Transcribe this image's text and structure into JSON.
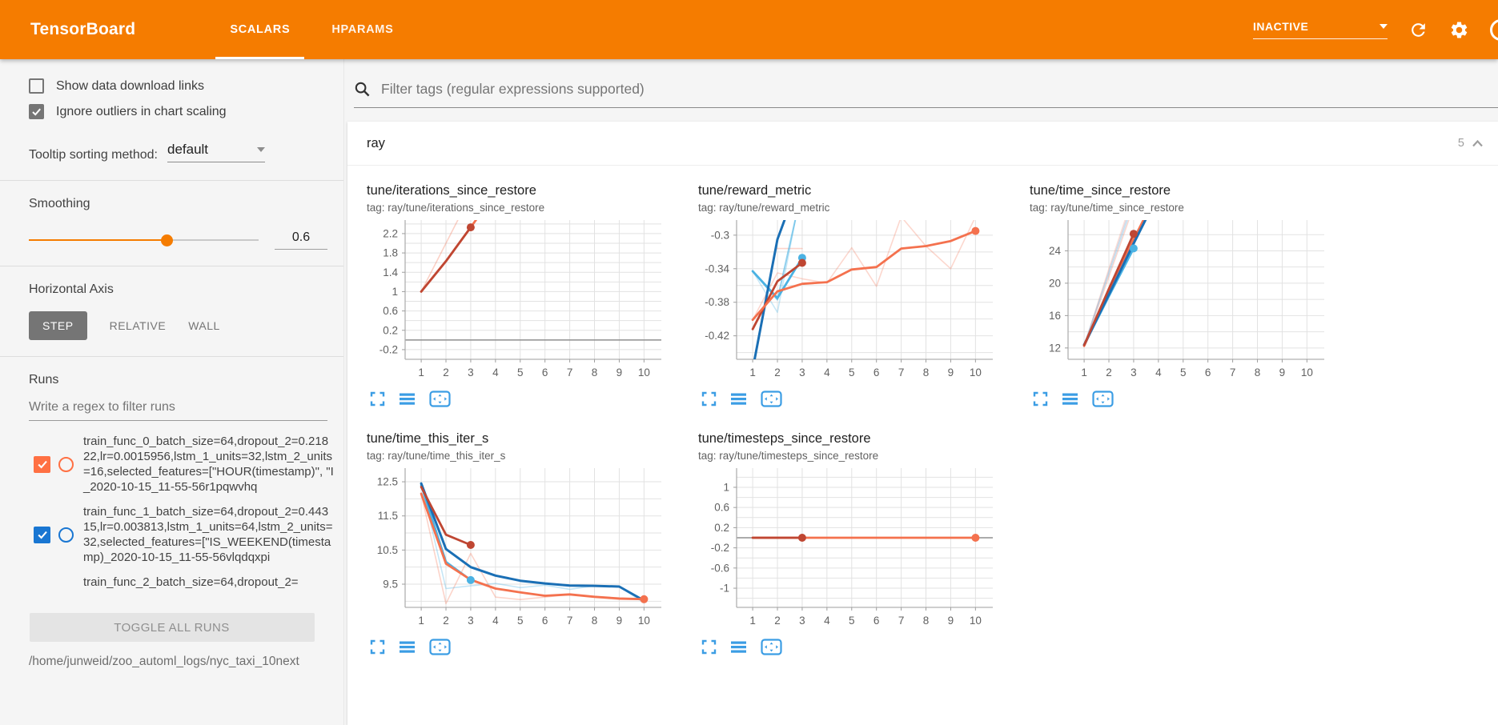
{
  "theme": {
    "accent_orange": "#f57c00",
    "chart_action_blue": "#3b9de4",
    "run_color_orange": "#ff7043",
    "run_color_blue": "#1976d2"
  },
  "header": {
    "title": "TensorBoard",
    "tabs": [
      {
        "label": "SCALARS",
        "active": true
      },
      {
        "label": "HPARAMS",
        "active": false
      }
    ],
    "status": "INACTIVE",
    "icons": [
      "caret-down",
      "refresh",
      "gear",
      "help-circle"
    ]
  },
  "sidebar": {
    "checkboxes": [
      {
        "label": "Show data download links",
        "checked": false
      },
      {
        "label": "Ignore outliers in chart scaling",
        "checked": true
      }
    ],
    "tooltip_sorting": {
      "label": "Tooltip sorting method:",
      "value": "default"
    },
    "smoothing": {
      "label": "Smoothing",
      "value": "0.6"
    },
    "horizontal_axis": {
      "label": "Horizontal Axis",
      "options": [
        "STEP",
        "RELATIVE",
        "WALL"
      ],
      "selected": "STEP"
    },
    "runs": {
      "label": "Runs",
      "filter_placeholder": "Write a regex to filter runs",
      "items": [
        {
          "label": "train_func_0_batch_size=64,dropout_2=0.21822,lr=0.0015956,lstm_1_units=32,lstm_2_units=16,selected_features=[\"HOUR(timestamp)\", \"I_2020-10-15_11-55-56r1pqwvhq",
          "checked": true,
          "color": "#ff7043"
        },
        {
          "label": "train_func_1_batch_size=64,dropout_2=0.44315,lr=0.003813,lstm_1_units=64,lstm_2_units=32,selected_features=[\"IS_WEEKEND(timestamp)_2020-10-15_11-55-56vlqdqxpi",
          "checked": true,
          "color": "#1976d2"
        },
        {
          "label": "train_func_2_batch_size=64,dropout_2=",
          "checked": null,
          "color": null
        }
      ],
      "toggle_all_label": "TOGGLE ALL RUNS"
    },
    "log_path": "/home/junweid/zoo_automl_logs/nyc_taxi_10next"
  },
  "main": {
    "filter_placeholder": "Filter tags (regular expressions supported)",
    "group": {
      "name": "ray",
      "count": "5"
    }
  },
  "chart_data": [
    {
      "type": "line",
      "title": "tune/iterations_since_restore",
      "tag": "tag: ray/tune/iterations_since_restore",
      "xticks": [
        1,
        2,
        3,
        4,
        5,
        6,
        7,
        8,
        9,
        10
      ],
      "xlim": [
        0.35,
        10.7
      ],
      "ylim": [
        -0.4,
        2.48
      ],
      "yticks": [
        [
          2.2,
          "2.2"
        ],
        [
          1.8,
          "1.8"
        ],
        [
          1.4,
          "1.4"
        ],
        [
          1,
          "1"
        ],
        [
          0.6,
          "0.6"
        ],
        [
          0.2,
          "0.2"
        ],
        [
          -0.2,
          "-0.2"
        ]
      ],
      "minor_step": 0.2,
      "zero_line": true,
      "series": [
        {
          "name": "raw",
          "color": "#f4714e",
          "width": 1.6,
          "opacity": 0.32,
          "points": [
            [
              1,
              1
            ],
            [
              2,
              2
            ],
            [
              3,
              3
            ]
          ]
        },
        {
          "name": "smoothed-orange",
          "color": "#f4714e",
          "width": 2.8,
          "opacity": 1,
          "points": [
            [
              1,
              1
            ],
            [
              2,
              1.63
            ],
            [
              3,
              2.33
            ],
            [
              4,
              3.05
            ]
          ]
        },
        {
          "name": "smoothed-red",
          "color": "#bf4632",
          "width": 2.8,
          "opacity": 1,
          "points": [
            [
              1,
              1
            ],
            [
              2,
              1.63
            ],
            [
              3,
              2.33
            ]
          ],
          "end_dot": true
        }
      ]
    },
    {
      "type": "line",
      "title": "tune/reward_metric",
      "tag": "tag: ray/tune/reward_metric",
      "xticks": [
        1,
        2,
        3,
        4,
        5,
        6,
        7,
        8,
        9,
        10
      ],
      "xlim": [
        0.35,
        10.7
      ],
      "ylim": [
        -0.448,
        -0.282
      ],
      "yticks": [
        [
          -0.3,
          "-0.3"
        ],
        [
          -0.34,
          "-0.34"
        ],
        [
          -0.38,
          "-0.38"
        ],
        [
          -0.42,
          "-0.42"
        ]
      ],
      "minor_step": 0.02,
      "zero_line": false,
      "series": [
        {
          "name": "raw-pink-flat",
          "color": "#f4714e",
          "width": 1.6,
          "opacity": 0.3,
          "points": [
            [
              2,
              -0.316
            ],
            [
              3,
              -0.316
            ]
          ]
        },
        {
          "name": "raw-pink",
          "color": "#f4714e",
          "width": 1.6,
          "opacity": 0.28,
          "points": [
            [
              1,
              -0.401
            ],
            [
              2,
              -0.345
            ],
            [
              3,
              -0.352
            ],
            [
              4,
              -0.357
            ],
            [
              5,
              -0.315
            ],
            [
              6,
              -0.361
            ],
            [
              7,
              -0.278
            ],
            [
              8,
              -0.313
            ],
            [
              9,
              -0.34
            ],
            [
              10,
              -0.278
            ]
          ]
        },
        {
          "name": "raw-cyan",
          "color": "#4ab2e3",
          "width": 1.6,
          "opacity": 0.3,
          "points": [
            [
              1,
              -0.343
            ],
            [
              2,
              -0.392
            ],
            [
              3,
              -0.24
            ]
          ]
        },
        {
          "name": "raw-cyan-2",
          "color": "#4ab2e3",
          "width": 2,
          "opacity": 0.6,
          "points": [
            [
              1,
              -0.343
            ],
            [
              2,
              -0.377
            ],
            [
              3,
              -0.245
            ]
          ]
        },
        {
          "name": "smoothed-cyan",
          "color": "#4ab2e3",
          "width": 2.8,
          "opacity": 1,
          "points": [
            [
              1,
              -0.343
            ],
            [
              2,
              -0.375
            ],
            [
              3,
              -0.327
            ]
          ],
          "end_dot": true
        },
        {
          "name": "smoothed-blue",
          "color": "#1a6fb5",
          "width": 3,
          "opacity": 1,
          "points": [
            [
              1,
              -0.46
            ],
            [
              2,
              -0.305
            ],
            [
              3,
              -0.225
            ]
          ]
        },
        {
          "name": "smoothed-red",
          "color": "#bf4632",
          "width": 2.8,
          "opacity": 1,
          "points": [
            [
              1,
              -0.412
            ],
            [
              2,
              -0.355
            ],
            [
              3,
              -0.333
            ]
          ],
          "end_dot": true
        },
        {
          "name": "smoothed-orange",
          "color": "#f4714e",
          "width": 2.8,
          "opacity": 1,
          "points": [
            [
              1,
              -0.401
            ],
            [
              2,
              -0.367
            ],
            [
              3,
              -0.358
            ],
            [
              4,
              -0.356
            ],
            [
              5,
              -0.341
            ],
            [
              6,
              -0.338
            ],
            [
              7,
              -0.316
            ],
            [
              8,
              -0.313
            ],
            [
              9,
              -0.307
            ],
            [
              10,
              -0.295
            ]
          ],
          "end_dot": true
        }
      ]
    },
    {
      "type": "line",
      "title": "tune/time_since_restore",
      "tag": "tag: ray/tune/time_since_restore",
      "xticks": [
        1,
        2,
        3,
        4,
        5,
        6,
        7,
        8,
        9,
        10
      ],
      "xlim": [
        0.35,
        10.7
      ],
      "ylim": [
        10.6,
        27.8
      ],
      "yticks": [
        [
          24,
          "24"
        ],
        [
          20,
          "20"
        ],
        [
          16,
          "16"
        ],
        [
          12,
          "12"
        ]
      ],
      "minor_step": 2,
      "zero_line": false,
      "series": [
        {
          "name": "raw-pink",
          "color": "#f4714e",
          "width": 1.6,
          "opacity": 0.28,
          "points": [
            [
              1,
              12.2
            ],
            [
              2,
              20.8
            ],
            [
              3,
              29.5
            ]
          ]
        },
        {
          "name": "raw-pink-2",
          "color": "#f4714e",
          "width": 1.6,
          "opacity": 0.22,
          "points": [
            [
              1,
              12.2
            ],
            [
              2,
              21.8
            ],
            [
              3,
              31
            ]
          ]
        },
        {
          "name": "raw-blue",
          "color": "#4ab2e3",
          "width": 1.6,
          "opacity": 0.3,
          "points": [
            [
              1,
              12.35
            ],
            [
              2,
              21.2
            ],
            [
              3,
              30
            ]
          ]
        },
        {
          "name": "raw-gray",
          "color": "#aab4cf",
          "width": 1.6,
          "opacity": 0.45,
          "points": [
            [
              1,
              12.3
            ],
            [
              2,
              21.5
            ],
            [
              3,
              30.5
            ]
          ]
        },
        {
          "name": "smoothed-cyan",
          "color": "#4ab2e3",
          "width": 2.8,
          "opacity": 1,
          "points": [
            [
              1,
              12.35
            ],
            [
              2,
              18.4
            ],
            [
              3,
              24.3
            ]
          ],
          "end_dot": true
        },
        {
          "name": "smoothed-orange",
          "color": "#f4714e",
          "width": 2.8,
          "opacity": 1,
          "points": [
            [
              1,
              12.25
            ],
            [
              2,
              18.9
            ],
            [
              3,
              25.4
            ],
            [
              4,
              31.5
            ]
          ]
        },
        {
          "name": "smoothed-blue",
          "color": "#1a6fb5",
          "width": 3,
          "opacity": 1,
          "points": [
            [
              1,
              12.4
            ],
            [
              2,
              18.6
            ],
            [
              3,
              24.9
            ],
            [
              4,
              31
            ]
          ]
        },
        {
          "name": "smoothed-red",
          "color": "#bf4632",
          "width": 2.8,
          "opacity": 1,
          "points": [
            [
              1,
              12.35
            ],
            [
              2,
              19.3
            ],
            [
              3,
              26.1
            ]
          ],
          "end_dot": true
        }
      ]
    },
    {
      "type": "line",
      "title": "tune/time_this_iter_s",
      "tag": "tag: ray/tune/time_this_iter_s",
      "xticks": [
        1,
        2,
        3,
        4,
        5,
        6,
        7,
        8,
        9,
        10
      ],
      "xlim": [
        0.35,
        10.7
      ],
      "ylim": [
        8.82,
        12.9
      ],
      "yticks": [
        [
          12.5,
          "12.5"
        ],
        [
          11.5,
          "11.5"
        ],
        [
          10.5,
          "10.5"
        ],
        [
          9.5,
          "9.5"
        ]
      ],
      "minor_step": 0.5,
      "zero_line": false,
      "series": [
        {
          "name": "raw-pink",
          "color": "#f4714e",
          "width": 1.6,
          "opacity": 0.3,
          "points": [
            [
              1,
              12.15
            ],
            [
              2,
              8.93
            ],
            [
              3,
              10.4
            ],
            [
              4,
              9.12
            ],
            [
              5,
              9.05
            ],
            [
              6,
              9.12
            ],
            [
              7,
              9.2
            ],
            [
              8,
              9.12
            ],
            [
              9,
              9.05
            ],
            [
              10,
              9.05
            ]
          ]
        },
        {
          "name": "raw-blue",
          "color": "#4ab2e3",
          "width": 1.6,
          "opacity": 0.32,
          "points": [
            [
              1,
              12.45
            ],
            [
              2,
              9.37
            ],
            [
              3,
              9.45
            ],
            [
              4,
              9.52
            ],
            [
              5,
              9.4
            ],
            [
              6,
              9.47
            ],
            [
              7,
              9.35
            ],
            [
              8,
              9.45
            ],
            [
              9,
              9.43
            ],
            [
              10,
              8.95
            ]
          ]
        },
        {
          "name": "smoothed-cyan",
          "color": "#4ab2e3",
          "width": 2.8,
          "opacity": 1,
          "points": [
            [
              1,
              12.4
            ],
            [
              2,
              10.15
            ],
            [
              3,
              9.62
            ]
          ],
          "end_dot": true
        },
        {
          "name": "smoothed-blue",
          "color": "#1a6fb5",
          "width": 3,
          "opacity": 1,
          "points": [
            [
              1,
              12.45
            ],
            [
              2,
              10.53
            ],
            [
              3,
              10.0
            ],
            [
              4,
              9.75
            ],
            [
              5,
              9.6
            ],
            [
              6,
              9.52
            ],
            [
              7,
              9.46
            ],
            [
              8,
              9.45
            ],
            [
              9,
              9.43
            ],
            [
              10,
              9.02
            ]
          ]
        },
        {
          "name": "smoothed-orange",
          "color": "#f4714e",
          "width": 2.8,
          "opacity": 1,
          "points": [
            [
              1,
              12.15
            ],
            [
              2,
              10.1
            ],
            [
              3,
              9.63
            ],
            [
              4,
              9.37
            ],
            [
              5,
              9.26
            ],
            [
              6,
              9.16
            ],
            [
              7,
              9.2
            ],
            [
              8,
              9.13
            ],
            [
              9,
              9.08
            ],
            [
              10,
              9.06
            ]
          ],
          "end_dot": true
        },
        {
          "name": "smoothed-red",
          "color": "#bf4632",
          "width": 2.8,
          "opacity": 1,
          "points": [
            [
              1,
              12.35
            ],
            [
              2,
              10.95
            ],
            [
              3,
              10.65
            ]
          ],
          "end_dot": true
        }
      ]
    },
    {
      "type": "line",
      "title": "tune/timesteps_since_restore",
      "tag": "tag: ray/tune/timesteps_since_restore",
      "xticks": [
        1,
        2,
        3,
        4,
        5,
        6,
        7,
        8,
        9,
        10
      ],
      "xlim": [
        0.35,
        10.7
      ],
      "ylim": [
        -1.38,
        1.38
      ],
      "yticks": [
        [
          1,
          "1"
        ],
        [
          0.6,
          "0.6"
        ],
        [
          0.2,
          "0.2"
        ],
        [
          -0.2,
          "-0.2"
        ],
        [
          -0.6,
          "-0.6"
        ],
        [
          -1,
          "-1"
        ]
      ],
      "minor_step": 0.2,
      "zero_line": true,
      "series": [
        {
          "name": "smoothed-orange",
          "color": "#f4714e",
          "width": 2.8,
          "opacity": 1,
          "points": [
            [
              1,
              0
            ],
            [
              10,
              0
            ]
          ],
          "end_dot": true
        },
        {
          "name": "smoothed-red",
          "color": "#bf4632",
          "width": 2.8,
          "opacity": 1,
          "points": [
            [
              1,
              0
            ],
            [
              3,
              0
            ]
          ],
          "end_dot": true
        }
      ]
    }
  ]
}
